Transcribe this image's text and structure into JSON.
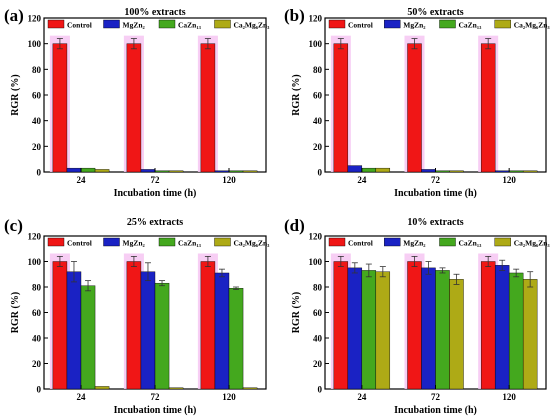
{
  "series_colors": [
    "#f01616",
    "#1a22c4",
    "#44a81e",
    "#aeaa16"
  ],
  "charts": [
    {
      "label": "(a)",
      "title": "100% extracts"
    },
    {
      "label": "(b)",
      "title": "50% extracts"
    },
    {
      "label": "(c)",
      "title": "25% extracts"
    },
    {
      "label": "(d)",
      "title": "10% extracts"
    }
  ],
  "chart_data": [
    {
      "type": "bar",
      "title": "100% extracts",
      "xlabel": "Incubation time (h)",
      "ylabel": "RGR (%)",
      "categories": [
        "24",
        "72",
        "120"
      ],
      "ylim": [
        0,
        120
      ],
      "yticks": [
        "0",
        "20",
        "40",
        "60",
        "80",
        "100",
        "120"
      ],
      "legend_placement": "top",
      "series": [
        {
          "name": "Control",
          "values": [
            100,
            100,
            100
          ],
          "errors": [
            4,
            4,
            4
          ]
        },
        {
          "name": "MgZn₂",
          "values": [
            3,
            2,
            1
          ],
          "errors": [
            0.5,
            0.5,
            0.5
          ]
        },
        {
          "name": "CaZn₁₃",
          "values": [
            3,
            1,
            1
          ],
          "errors": [
            0.5,
            0.5,
            0.5
          ]
        },
        {
          "name": "Ca₂Mg₆Zn₃",
          "values": [
            2,
            1,
            1
          ],
          "errors": [
            0.5,
            0.5,
            0.5
          ]
        }
      ]
    },
    {
      "type": "bar",
      "title": "50% extracts",
      "xlabel": "Incubation time (h)",
      "ylabel": "RGR (%)",
      "categories": [
        "24",
        "72",
        "120"
      ],
      "ylim": [
        0,
        120
      ],
      "yticks": [
        "0",
        "20",
        "40",
        "60",
        "80",
        "100",
        "120"
      ],
      "legend_placement": "top",
      "series": [
        {
          "name": "Control",
          "values": [
            100,
            100,
            100
          ],
          "errors": [
            4,
            4,
            4
          ]
        },
        {
          "name": "MgZn₂",
          "values": [
            5,
            2,
            1
          ],
          "errors": [
            0.5,
            0.5,
            0.5
          ]
        },
        {
          "name": "CaZn₁₃",
          "values": [
            3,
            1,
            1
          ],
          "errors": [
            0.5,
            0.5,
            0.5
          ]
        },
        {
          "name": "Ca₂Mg₆Zn₃",
          "values": [
            3,
            1,
            1
          ],
          "errors": [
            0.5,
            0.5,
            0.5
          ]
        }
      ]
    },
    {
      "type": "bar",
      "title": "25% extracts",
      "xlabel": "Incubation time (h)",
      "ylabel": "RGR (%)",
      "categories": [
        "24",
        "72",
        "120"
      ],
      "ylim": [
        0,
        120
      ],
      "yticks": [
        "0",
        "20",
        "40",
        "60",
        "80",
        "100",
        "120"
      ],
      "legend_placement": "top",
      "series": [
        {
          "name": "Control",
          "values": [
            100,
            100,
            100
          ],
          "errors": [
            4,
            4,
            4
          ]
        },
        {
          "name": "MgZn₂",
          "values": [
            92,
            92,
            91
          ],
          "errors": [
            8,
            7,
            3
          ]
        },
        {
          "name": "CaZn₁₃",
          "values": [
            81,
            83,
            79
          ],
          "errors": [
            4,
            2,
            1
          ]
        },
        {
          "name": "Ca₂Mg₆Zn₃",
          "values": [
            2,
            1,
            1
          ],
          "errors": [
            0.5,
            0.5,
            0.5
          ]
        }
      ]
    },
    {
      "type": "bar",
      "title": "10% extracts",
      "xlabel": "Incubation time (h)",
      "ylabel": "RGR (%)",
      "categories": [
        "24",
        "72",
        "120"
      ],
      "ylim": [
        0,
        120
      ],
      "yticks": [
        "0",
        "20",
        "40",
        "60",
        "80",
        "100",
        "120"
      ],
      "legend_placement": "top",
      "series": [
        {
          "name": "Control",
          "values": [
            100,
            100,
            100
          ],
          "errors": [
            4,
            4,
            4
          ]
        },
        {
          "name": "MgZn₂",
          "values": [
            95,
            95,
            97
          ],
          "errors": [
            4,
            5,
            4
          ]
        },
        {
          "name": "CaZn₁₃",
          "values": [
            93,
            93,
            91
          ],
          "errors": [
            5,
            2,
            3
          ]
        },
        {
          "name": "Ca₂Mg₆Zn₃",
          "values": [
            92,
            86,
            86
          ],
          "errors": [
            4,
            4,
            6
          ]
        }
      ]
    }
  ]
}
